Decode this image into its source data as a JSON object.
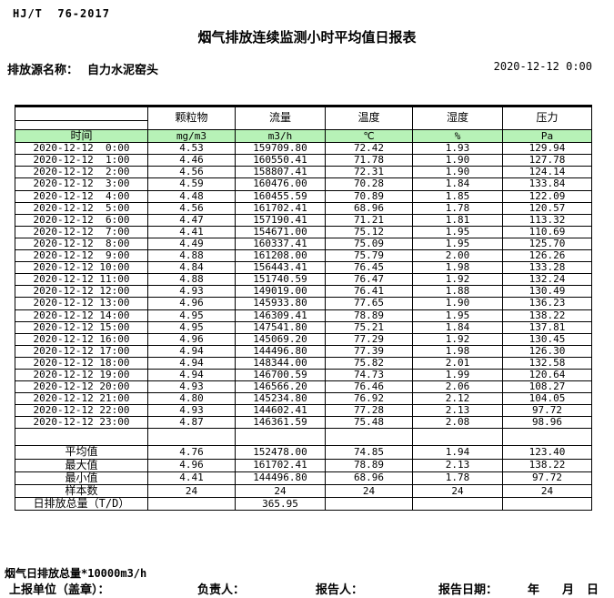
{
  "header": {
    "doc_code": "HJ/T  76-2017",
    "title": "烟气排放连续监测小时平均值日报表",
    "source_label": "排放源名称：",
    "source_name": "自力水泥窑头",
    "report_time": "2020-12-12 0:00"
  },
  "colors": {
    "unit_row_green": "#b7f2b7"
  },
  "table": {
    "time_header": "时间",
    "columns": [
      "颗粒物",
      "流量",
      "温度",
      "湿度",
      "压力"
    ],
    "units": [
      "mg/m3",
      "m3/h",
      "℃",
      "%",
      "Pa"
    ],
    "rows": [
      {
        "time": "2020-12-12  0:00",
        "values": [
          "4.53",
          "159709.80",
          "72.42",
          "1.93",
          "129.94"
        ]
      },
      {
        "time": "2020-12-12  1:00",
        "values": [
          "4.46",
          "160550.41",
          "71.78",
          "1.90",
          "127.78"
        ]
      },
      {
        "time": "2020-12-12  2:00",
        "values": [
          "4.56",
          "158807.41",
          "72.31",
          "1.90",
          "124.14"
        ]
      },
      {
        "time": "2020-12-12  3:00",
        "values": [
          "4.59",
          "160476.00",
          "70.28",
          "1.84",
          "133.84"
        ]
      },
      {
        "time": "2020-12-12  4:00",
        "values": [
          "4.48",
          "160455.59",
          "70.89",
          "1.85",
          "122.09"
        ]
      },
      {
        "time": "2020-12-12  5:00",
        "values": [
          "4.56",
          "161702.41",
          "68.96",
          "1.78",
          "120.57"
        ]
      },
      {
        "time": "2020-12-12  6:00",
        "values": [
          "4.47",
          "157190.41",
          "71.21",
          "1.81",
          "113.32"
        ]
      },
      {
        "time": "2020-12-12  7:00",
        "values": [
          "4.41",
          "154671.00",
          "75.12",
          "1.95",
          "110.69"
        ]
      },
      {
        "time": "2020-12-12  8:00",
        "values": [
          "4.49",
          "160337.41",
          "75.09",
          "1.95",
          "125.70"
        ]
      },
      {
        "time": "2020-12-12  9:00",
        "values": [
          "4.88",
          "161208.00",
          "75.79",
          "2.00",
          "126.26"
        ]
      },
      {
        "time": "2020-12-12 10:00",
        "values": [
          "4.84",
          "156443.41",
          "76.45",
          "1.98",
          "133.28"
        ]
      },
      {
        "time": "2020-12-12 11:00",
        "values": [
          "4.88",
          "151740.59",
          "76.47",
          "1.92",
          "132.24"
        ]
      },
      {
        "time": "2020-12-12 12:00",
        "values": [
          "4.93",
          "149019.00",
          "76.41",
          "1.88",
          "130.49"
        ]
      },
      {
        "time": "2020-12-12 13:00",
        "values": [
          "4.96",
          "145933.80",
          "77.65",
          "1.90",
          "136.23"
        ]
      },
      {
        "time": "2020-12-12 14:00",
        "values": [
          "4.95",
          "146309.41",
          "78.89",
          "1.95",
          "138.22"
        ]
      },
      {
        "time": "2020-12-12 15:00",
        "values": [
          "4.95",
          "147541.80",
          "75.21",
          "1.84",
          "137.81"
        ]
      },
      {
        "time": "2020-12-12 16:00",
        "values": [
          "4.96",
          "145069.20",
          "77.29",
          "1.92",
          "130.45"
        ]
      },
      {
        "time": "2020-12-12 17:00",
        "values": [
          "4.94",
          "144496.80",
          "77.39",
          "1.98",
          "126.30"
        ]
      },
      {
        "time": "2020-12-12 18:00",
        "values": [
          "4.94",
          "148344.00",
          "75.82",
          "2.01",
          "132.58"
        ]
      },
      {
        "time": "2020-12-12 19:00",
        "values": [
          "4.94",
          "146700.59",
          "74.73",
          "1.99",
          "120.64"
        ]
      },
      {
        "time": "2020-12-12 20:00",
        "values": [
          "4.93",
          "146566.20",
          "76.46",
          "2.06",
          "108.27"
        ]
      },
      {
        "time": "2020-12-12 21:00",
        "values": [
          "4.80",
          "145234.80",
          "76.92",
          "2.12",
          "104.05"
        ]
      },
      {
        "time": "2020-12-12 22:00",
        "values": [
          "4.93",
          "144602.41",
          "77.28",
          "2.13",
          "97.72"
        ]
      },
      {
        "time": "2020-12-12 23:00",
        "values": [
          "4.87",
          "146361.59",
          "75.48",
          "2.08",
          "98.96"
        ]
      }
    ],
    "summary": [
      {
        "label": "平均值",
        "values": [
          "4.76",
          "152478.00",
          "74.85",
          "1.94",
          "123.40"
        ]
      },
      {
        "label": "最大值",
        "values": [
          "4.96",
          "161702.41",
          "78.89",
          "2.13",
          "138.22"
        ]
      },
      {
        "label": "最小值",
        "values": [
          "4.41",
          "144496.80",
          "68.96",
          "1.78",
          "97.72"
        ]
      },
      {
        "label": "样本数",
        "values": [
          "24",
          "24",
          "24",
          "24",
          "24"
        ]
      },
      {
        "label": "日排放总量（T/D）",
        "values": [
          "",
          "365.95",
          "",
          "",
          ""
        ]
      }
    ]
  },
  "footer": {
    "note": "烟气日排放总量*10000m3/h",
    "unit_label": "上报单位（盖章）：",
    "manager_label": "负责人：",
    "reporter_label": "报告人：",
    "date_label": "报告日期：",
    "year_label": "年",
    "month_label": "月",
    "day_label": "日"
  }
}
